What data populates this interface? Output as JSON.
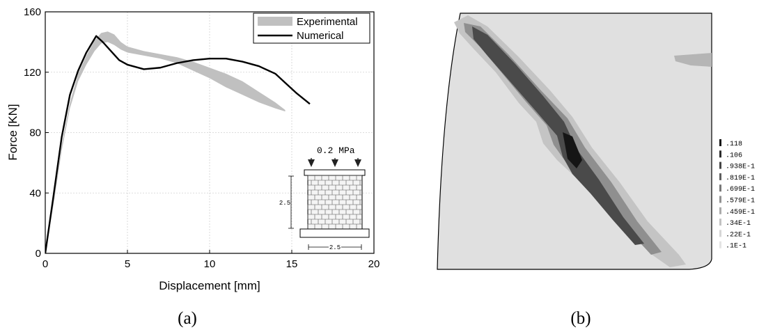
{
  "captions": {
    "a": "(a)",
    "b": "(b)"
  },
  "chart_data": [
    {
      "type": "line",
      "xlabel": "Displacement [mm]",
      "ylabel": "Force [KN]",
      "xlim": [
        0,
        20
      ],
      "ylim": [
        0,
        160
      ],
      "xticks": [
        0,
        5,
        10,
        15,
        20
      ],
      "yticks": [
        0,
        40,
        80,
        120,
        160
      ],
      "grid": true,
      "legend_position": "top-right",
      "series": [
        {
          "name": "Experimental",
          "style": "band",
          "color": "#c0c0c0",
          "upper": [
            [
              0,
              0
            ],
            [
              0.5,
              35
            ],
            [
              1,
              72
            ],
            [
              1.5,
              100
            ],
            [
              2,
              119
            ],
            [
              2.5,
              131
            ],
            [
              3,
              141
            ],
            [
              3.4,
              146
            ],
            [
              3.8,
              147
            ],
            [
              4.2,
              145
            ],
            [
              4.6,
              140
            ],
            [
              5,
              137
            ],
            [
              6,
              134
            ],
            [
              7,
              132
            ],
            [
              8,
              130
            ],
            [
              9,
              127
            ],
            [
              10,
              123
            ],
            [
              11,
              119
            ],
            [
              12,
              114
            ],
            [
              13,
              107
            ],
            [
              14,
              100
            ],
            [
              14.6,
              95
            ]
          ],
          "lower": [
            [
              0,
              0
            ],
            [
              0.5,
              32
            ],
            [
              1,
              68
            ],
            [
              1.5,
              96
            ],
            [
              2,
              114
            ],
            [
              2.5,
              125
            ],
            [
              3,
              134
            ],
            [
              3.4,
              139
            ],
            [
              3.8,
              140
            ],
            [
              4.2,
              138
            ],
            [
              4.6,
              135
            ],
            [
              5,
              133
            ],
            [
              6,
              131
            ],
            [
              7,
              129
            ],
            [
              8,
              126
            ],
            [
              9,
              121
            ],
            [
              10,
              116
            ],
            [
              11,
              110
            ],
            [
              12,
              105
            ],
            [
              13,
              100
            ],
            [
              14,
              96
            ],
            [
              14.6,
              94
            ]
          ]
        },
        {
          "name": "Numerical",
          "style": "line",
          "color": "#000000",
          "points": [
            [
              0,
              0
            ],
            [
              0.5,
              38
            ],
            [
              1,
              77
            ],
            [
              1.5,
              105
            ],
            [
              2,
              121
            ],
            [
              2.5,
              133
            ],
            [
              3.1,
              144
            ],
            [
              3.5,
              140
            ],
            [
              4,
              134
            ],
            [
              4.5,
              128
            ],
            [
              5,
              125
            ],
            [
              6,
              122
            ],
            [
              7,
              123
            ],
            [
              8,
              126
            ],
            [
              9,
              128
            ],
            [
              10,
              129
            ],
            [
              11,
              129
            ],
            [
              12,
              127
            ],
            [
              13,
              124
            ],
            [
              14,
              119
            ],
            [
              14.7,
              112
            ],
            [
              15.3,
              106
            ],
            [
              16.1,
              99
            ]
          ]
        }
      ],
      "inset": {
        "load_label": "0.2  MPa",
        "height_label": "2.5",
        "width_label": "2.5"
      }
    },
    {
      "type": "heatmap",
      "colorbar": {
        "labels": [
          ".118",
          ".106",
          ".938E-1",
          ".819E-1",
          ".699E-1",
          ".579E-1",
          ".459E-1",
          ".34E-1",
          ".22E-1",
          ".1E-1"
        ],
        "colors": [
          "#111111",
          "#2b2b2b",
          "#454545",
          "#5e5e5e",
          "#787878",
          "#929292",
          "#ababab",
          "#c2c2c2",
          "#d6d6d6",
          "#e4e4e4"
        ]
      },
      "background_color": "#e0e0e0"
    }
  ]
}
